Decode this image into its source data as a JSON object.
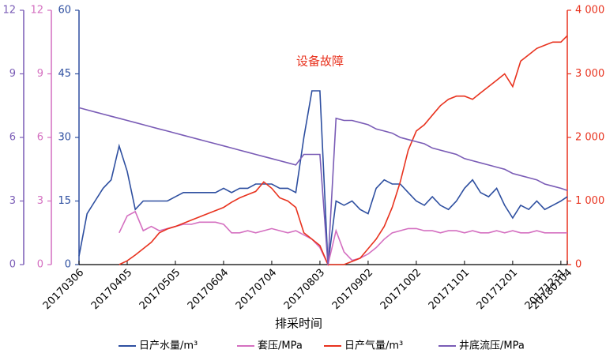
{
  "chart_data": {
    "type": "line",
    "annotation": "设备故障",
    "x_label": "排采时间",
    "x": [
      "2017-03-06",
      "2017-03-11",
      "2017-03-16",
      "2017-03-21",
      "2017-03-26",
      "2017-03-31",
      "2017-04-05",
      "2017-04-10",
      "2017-04-15",
      "2017-04-20",
      "2017-04-25",
      "2017-04-30",
      "2017-05-05",
      "2017-05-10",
      "2017-05-15",
      "2017-05-20",
      "2017-05-25",
      "2017-05-30",
      "2017-06-04",
      "2017-06-09",
      "2017-06-14",
      "2017-06-19",
      "2017-06-24",
      "2017-06-29",
      "2017-07-04",
      "2017-07-09",
      "2017-07-14",
      "2017-07-19",
      "2017-07-24",
      "2017-07-29",
      "2017-08-03",
      "2017-08-08",
      "2017-08-13",
      "2017-08-18",
      "2017-08-23",
      "2017-08-28",
      "2017-09-02",
      "2017-09-07",
      "2017-09-12",
      "2017-09-17",
      "2017-09-22",
      "2017-09-27",
      "2017-10-02",
      "2017-10-07",
      "2017-10-12",
      "2017-10-17",
      "2017-10-22",
      "2017-10-27",
      "2017-11-01",
      "2017-11-06",
      "2017-11-11",
      "2017-11-16",
      "2017-11-21",
      "2017-11-26",
      "2017-12-01",
      "2017-12-06",
      "2017-12-11",
      "2017-12-16",
      "2017-12-21",
      "2017-12-26",
      "2017-12-31",
      "2018-01-04"
    ],
    "xlim": [
      "2017-03-06",
      "2018-01-04"
    ],
    "xticks": [
      {
        "value": "2017-03-06",
        "label": "20170306"
      },
      {
        "value": "2017-04-05",
        "label": "20170405"
      },
      {
        "value": "2017-05-05",
        "label": "20170505"
      },
      {
        "value": "2017-06-04",
        "label": "20170604"
      },
      {
        "value": "2017-07-04",
        "label": "20170704"
      },
      {
        "value": "2017-08-03",
        "label": "20170803"
      },
      {
        "value": "2017-09-02",
        "label": "20170902"
      },
      {
        "value": "2017-10-02",
        "label": "20171002"
      },
      {
        "value": "2017-11-01",
        "label": "20171101"
      },
      {
        "value": "2017-12-01",
        "label": "20171201"
      },
      {
        "value": "2017-12-31",
        "label": "20171231"
      },
      {
        "value": "2018-01-04",
        "label": "20180104"
      }
    ],
    "ylim": [
      0,
      60
    ],
    "yticks": [
      0,
      15,
      30,
      45,
      60
    ],
    "y2lim": [
      0,
      4000
    ],
    "y2ticks": [
      0,
      {
        "value": 1000,
        "label": "1 000"
      },
      {
        "value": 2000,
        "label": "2 000"
      },
      {
        "value": 3000,
        "label": "3 000"
      },
      {
        "value": 4000,
        "label": "4 000"
      }
    ],
    "y3lim": [
      0,
      12
    ],
    "y3ticks": [
      0,
      3,
      6,
      9,
      12
    ],
    "y4lim": [
      0,
      12
    ],
    "y4ticks": [
      0,
      3,
      6,
      9,
      12
    ],
    "axis_colors": {
      "y": "#2e4fa0",
      "y2": "#e8321e",
      "y3": "#d46fc0",
      "y4": "#7a5cb6"
    },
    "series": [
      {
        "name": "日产水量/m³",
        "color": "#2e4fa0",
        "axis": "y",
        "values": [
          2,
          12,
          15,
          18,
          20,
          28,
          22,
          13,
          15,
          15,
          15,
          15,
          16,
          17,
          17,
          17,
          17,
          17,
          18,
          17,
          18,
          18,
          19,
          19,
          19,
          18,
          18,
          17,
          30,
          41,
          41,
          0,
          15,
          14,
          15,
          13,
          12,
          18,
          20,
          19,
          19,
          17,
          15,
          14,
          16,
          14,
          13,
          15,
          18,
          20,
          17,
          16,
          18,
          14,
          11,
          14,
          13,
          15,
          13,
          14,
          15,
          16
        ]
      },
      {
        "name": "套压/MPa",
        "color": "#d46fc0",
        "axis": "y3",
        "values": [
          null,
          null,
          null,
          null,
          null,
          1.5,
          2.3,
          2.5,
          1.6,
          1.8,
          1.6,
          1.7,
          1.8,
          1.9,
          1.9,
          2.0,
          2.0,
          2.0,
          1.9,
          1.5,
          1.5,
          1.6,
          1.5,
          1.6,
          1.7,
          1.6,
          1.5,
          1.6,
          1.4,
          1.2,
          0.8,
          0,
          1.6,
          0.6,
          0.2,
          0.3,
          0.5,
          0.8,
          1.2,
          1.5,
          1.6,
          1.7,
          1.7,
          1.6,
          1.6,
          1.5,
          1.6,
          1.6,
          1.5,
          1.6,
          1.5,
          1.5,
          1.6,
          1.5,
          1.6,
          1.5,
          1.5,
          1.6,
          1.5,
          1.5,
          1.5,
          1.5
        ]
      },
      {
        "name": "日产气量/m³",
        "color": "#e8321e",
        "axis": "y2",
        "values": [
          null,
          null,
          null,
          null,
          null,
          0,
          60,
          150,
          250,
          350,
          500,
          560,
          600,
          650,
          700,
          750,
          800,
          850,
          900,
          980,
          1050,
          1100,
          1150,
          1300,
          1200,
          1050,
          1000,
          900,
          500,
          400,
          300,
          0,
          0,
          0,
          50,
          100,
          250,
          400,
          600,
          900,
          1300,
          1800,
          2100,
          2200,
          2350,
          2500,
          2600,
          2650,
          2650,
          2600,
          2700,
          2800,
          2900,
          3000,
          2800,
          3200,
          3300,
          3400,
          3450,
          3500,
          3500,
          3600
        ]
      },
      {
        "name": "井底流压/MPa",
        "color": "#7a5cb6",
        "axis": "y4",
        "values": [
          7.4,
          7.3,
          7.2,
          7.1,
          7.0,
          6.9,
          6.8,
          6.7,
          6.6,
          6.5,
          6.4,
          6.3,
          6.2,
          6.1,
          6.0,
          5.9,
          5.8,
          5.7,
          5.6,
          5.5,
          5.4,
          5.3,
          5.2,
          5.1,
          5.0,
          4.9,
          4.8,
          4.7,
          5.2,
          5.2,
          5.2,
          0,
          6.9,
          6.8,
          6.8,
          6.7,
          6.6,
          6.4,
          6.3,
          6.2,
          6.0,
          5.9,
          5.8,
          5.7,
          5.5,
          5.4,
          5.3,
          5.2,
          5.0,
          4.9,
          4.8,
          4.7,
          4.6,
          4.5,
          4.3,
          4.2,
          4.1,
          4.0,
          3.8,
          3.7,
          3.6,
          3.5
        ]
      }
    ]
  }
}
